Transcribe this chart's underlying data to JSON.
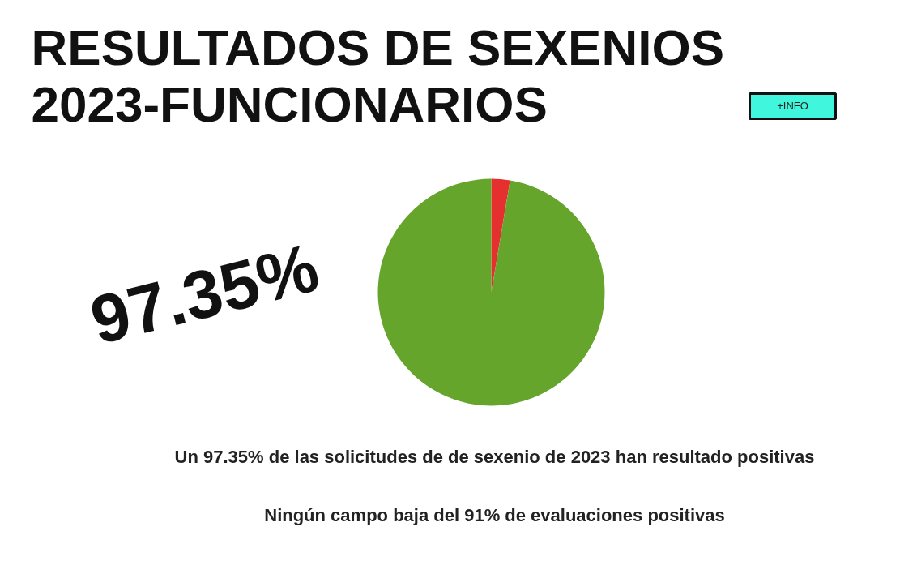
{
  "chart_data": {
    "type": "pie",
    "title": "RESULTADOS DE SEXENIOS 2023-FUNCIONARIOS",
    "categories": [
      null,
      null
    ],
    "values": [
      2.65,
      97.35
    ],
    "colors": [
      "#e5302f",
      "#66a52b"
    ],
    "annotations": [
      "+INFO",
      "97.35%",
      "Un 97.35% de las solicitudes de de sexenio de 2023 han resultado positivas",
      "Ningún campo baja del 91% de evaluaciones positivas"
    ]
  }
}
